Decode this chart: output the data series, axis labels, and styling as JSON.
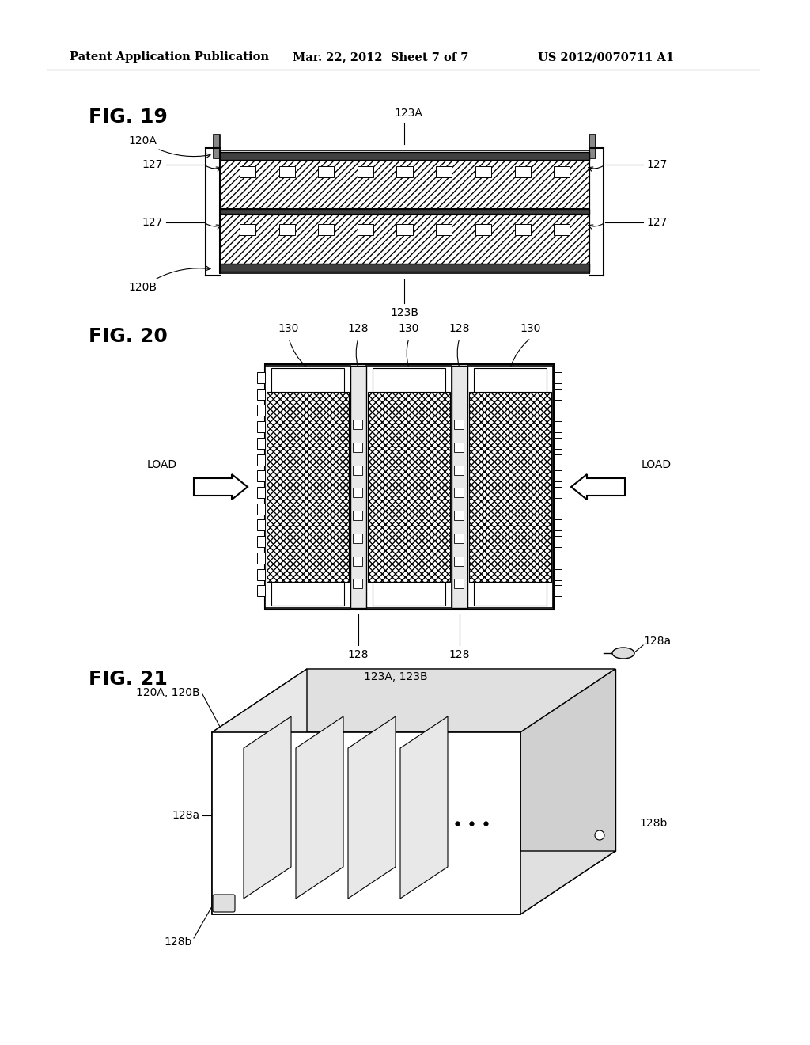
{
  "bg_color": "#ffffff",
  "header_left": "Patent Application Publication",
  "header_center": "Mar. 22, 2012  Sheet 7 of 7",
  "header_right": "US 2012/0070711 A1",
  "fig19_label": "FIG. 19",
  "fig20_label": "FIG. 20",
  "fig21_label": "FIG. 21"
}
